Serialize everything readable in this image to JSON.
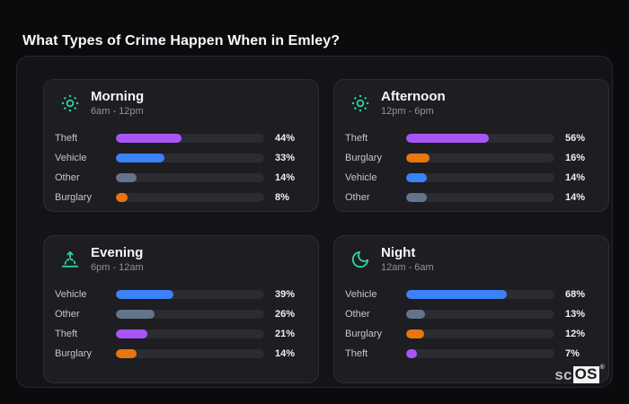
{
  "page": {
    "title": "What Types of Crime Happen When in Emley?"
  },
  "watermark": {
    "prefix": "sc",
    "brand": "OS",
    "registered": "®"
  },
  "colors": {
    "purple": "#a855f7",
    "blue": "#3b82f6",
    "slate": "#64748b",
    "orange": "#e8760f",
    "teal": "#2ed3a3",
    "page_bg": "#0b0b0e",
    "panel_bg": "#141418",
    "card_bg": "#1d1d22",
    "track_bg": "#2b2b32"
  },
  "chart_data": [
    {
      "type": "bar",
      "orientation": "horizontal",
      "title": "Morning",
      "subtitle": "6am - 12pm",
      "icon": "sun-icon",
      "value_unit": "%",
      "xlim": [
        0,
        100
      ],
      "rows": [
        {
          "label": "Theft",
          "value": 44,
          "display": "44%",
          "color": "purple"
        },
        {
          "label": "Vehicle",
          "value": 33,
          "display": "33%",
          "color": "blue"
        },
        {
          "label": "Other",
          "value": 14,
          "display": "14%",
          "color": "slate"
        },
        {
          "label": "Burglary",
          "value": 8,
          "display": "8%",
          "color": "orange"
        }
      ]
    },
    {
      "type": "bar",
      "orientation": "horizontal",
      "title": "Afternoon",
      "subtitle": "12pm - 6pm",
      "icon": "sun-icon",
      "value_unit": "%",
      "xlim": [
        0,
        100
      ],
      "rows": [
        {
          "label": "Theft",
          "value": 56,
          "display": "56%",
          "color": "purple"
        },
        {
          "label": "Burglary",
          "value": 16,
          "display": "16%",
          "color": "orange"
        },
        {
          "label": "Vehicle",
          "value": 14,
          "display": "14%",
          "color": "blue"
        },
        {
          "label": "Other",
          "value": 14,
          "display": "14%",
          "color": "slate"
        }
      ]
    },
    {
      "type": "bar",
      "orientation": "horizontal",
      "title": "Evening",
      "subtitle": "6pm - 12am",
      "icon": "sunrise-icon",
      "value_unit": "%",
      "xlim": [
        0,
        100
      ],
      "rows": [
        {
          "label": "Vehicle",
          "value": 39,
          "display": "39%",
          "color": "blue"
        },
        {
          "label": "Other",
          "value": 26,
          "display": "26%",
          "color": "slate"
        },
        {
          "label": "Theft",
          "value": 21,
          "display": "21%",
          "color": "purple"
        },
        {
          "label": "Burglary",
          "value": 14,
          "display": "14%",
          "color": "orange"
        }
      ]
    },
    {
      "type": "bar",
      "orientation": "horizontal",
      "title": "Night",
      "subtitle": "12am - 6am",
      "icon": "moon-icon",
      "value_unit": "%",
      "xlim": [
        0,
        100
      ],
      "rows": [
        {
          "label": "Vehicle",
          "value": 68,
          "display": "68%",
          "color": "blue"
        },
        {
          "label": "Other",
          "value": 13,
          "display": "13%",
          "color": "slate"
        },
        {
          "label": "Burglary",
          "value": 12,
          "display": "12%",
          "color": "orange"
        },
        {
          "label": "Theft",
          "value": 7,
          "display": "7%",
          "color": "purple"
        }
      ]
    }
  ]
}
